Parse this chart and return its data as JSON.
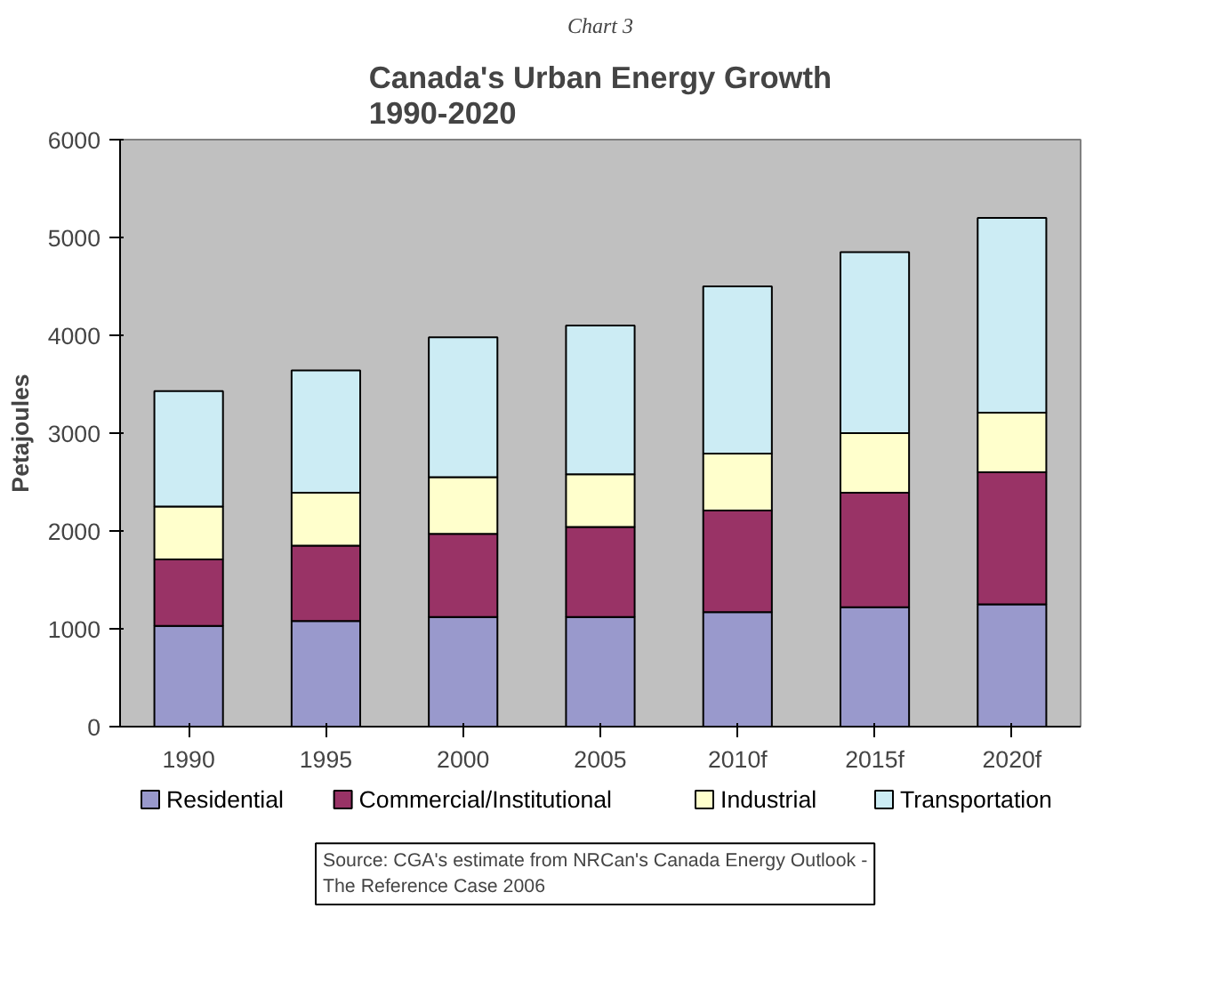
{
  "chart_data": {
    "type": "bar",
    "title": "Canada's Urban Energy Growth\n1990-2020",
    "ylabel": "Petajoules",
    "stacked": true,
    "categories": [
      "1990",
      "1995",
      "2000",
      "2005",
      "2010f",
      "2015f",
      "2020f"
    ],
    "series": [
      {
        "name": "Residential",
        "color": "#9999cc",
        "values": [
          1030,
          1080,
          1120,
          1120,
          1170,
          1220,
          1250
        ]
      },
      {
        "name": "Commercial/Institutional",
        "color": "#993366",
        "values": [
          680,
          770,
          850,
          920,
          1040,
          1170,
          1350
        ]
      },
      {
        "name": "Industrial",
        "color": "#ffffcc",
        "values": [
          540,
          540,
          580,
          540,
          580,
          610,
          610
        ]
      },
      {
        "name": "Transportation",
        "color": "#ccecf4",
        "values": [
          1180,
          1250,
          1430,
          1520,
          1710,
          1850,
          1990
        ]
      }
    ],
    "ylim": [
      0,
      6000
    ],
    "yticks": [
      0,
      1000,
      2000,
      3000,
      4000,
      5000,
      6000
    ],
    "grid": false,
    "legend": "bottom",
    "annotations": [
      "Chart 3",
      "Source: CGA's estimate from NRCan's Canada Energy Outlook -\nThe Reference Case 2006"
    ]
  }
}
